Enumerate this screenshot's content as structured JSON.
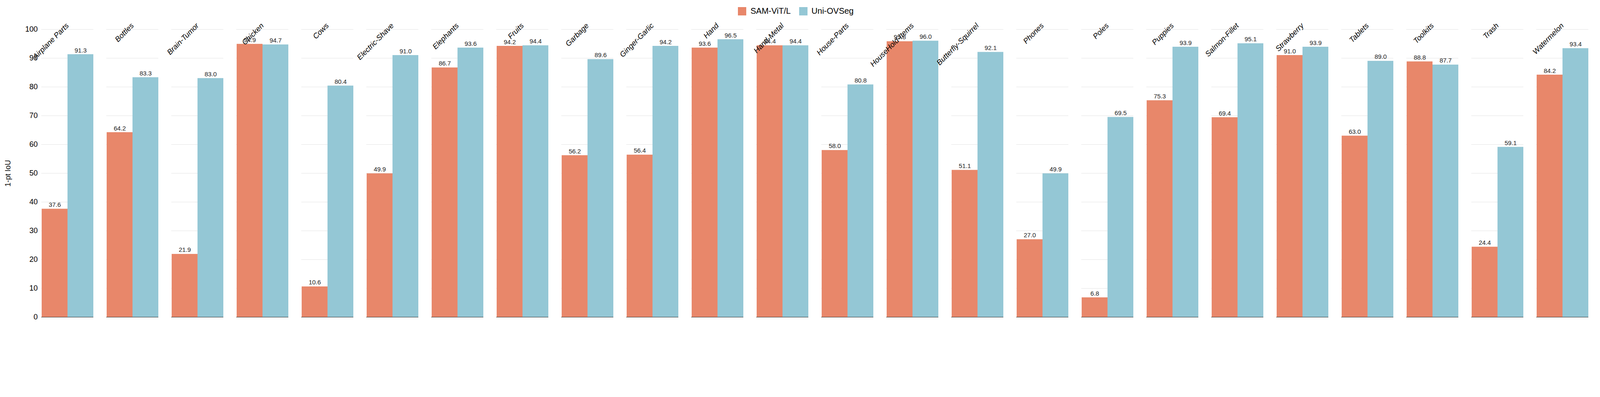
{
  "chart_data": {
    "type": "bar",
    "categories": [
      "Airplane Parts",
      "Bottles",
      "Brain-Tumor",
      "Chicken",
      "Cows",
      "Electric-Shave",
      "Elephants",
      "Fruits",
      "Garbage",
      "Ginger-Garlic",
      "Hand",
      "Hand-Metal",
      "House-Parts",
      "HouseHold-Items",
      "Butterfly-Squirrel",
      "Phones",
      "Poles",
      "Puppies",
      "Salmon-Fillet",
      "Strawberry",
      "Tablets",
      "Toolkits",
      "Trash",
      "Watermelon"
    ],
    "series": [
      {
        "name": "SAM-ViT/L",
        "color": "#E8876A",
        "values": [
          37.6,
          64.2,
          21.9,
          94.9,
          10.6,
          49.9,
          86.7,
          94.2,
          56.2,
          56.4,
          93.6,
          94.4,
          58.0,
          95.8,
          51.1,
          27.0,
          6.8,
          75.3,
          69.4,
          91.0,
          63.0,
          88.8,
          24.4,
          84.2
        ],
        "value_labels": [
          "37.6",
          "64.2",
          "21.9",
          "94.9",
          "10.6",
          "49.9",
          "86.7",
          "94.2",
          "56.2",
          "56.4",
          "93.6",
          "94.4",
          "58.0",
          "95.8",
          "51.1",
          "27.0",
          "6.8",
          "75.3",
          "69.4",
          "91.0",
          "63.0",
          "88.8",
          "24.4",
          "84.2"
        ]
      },
      {
        "name": "Uni-OVSeg",
        "color": "#94C7D5",
        "values": [
          91.3,
          83.3,
          83.0,
          94.7,
          80.4,
          91.0,
          93.6,
          94.4,
          89.6,
          94.2,
          96.5,
          94.4,
          80.8,
          96.0,
          92.1,
          49.9,
          69.5,
          93.9,
          95.1,
          93.9,
          89.0,
          87.7,
          59.1,
          93.4
        ],
        "value_labels": [
          "91.3",
          "83.3",
          "83.0",
          "94.7",
          "80.4",
          "91.0",
          "93.6",
          "94.4",
          "89.6",
          "94.2",
          "96.5",
          "94.4",
          "80.8",
          "96.0",
          "92.1",
          "49.9",
          "69.5",
          "93.9",
          "95.1",
          "93.9",
          "89.0",
          "87.7",
          "59.1",
          "93.4"
        ]
      }
    ],
    "ylabel": "1-pt IoU",
    "ylim": [
      0,
      100
    ],
    "yticks": [
      0,
      10,
      20,
      30,
      40,
      50,
      60,
      70,
      80,
      90,
      100
    ],
    "grid": true,
    "data_labels": true,
    "legend": "top"
  }
}
